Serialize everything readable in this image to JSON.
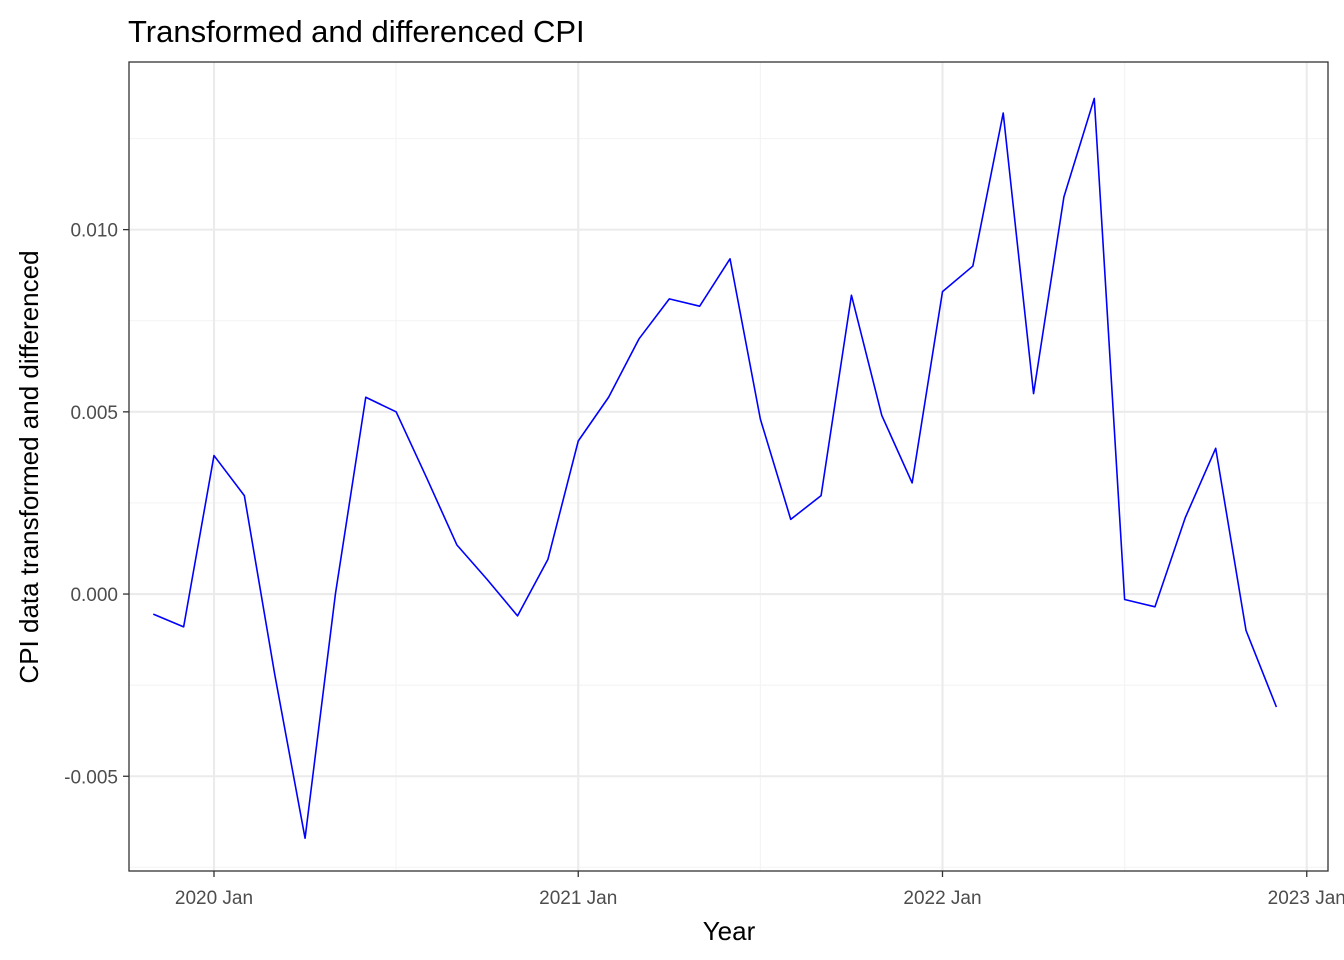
{
  "chart_data": {
    "type": "line",
    "title": "Transformed and differenced CPI",
    "xlabel": "Year",
    "ylabel": "CPI data transformed and differenced",
    "x": [
      "2019-11",
      "2019-12",
      "2020-01",
      "2020-02",
      "2020-03",
      "2020-04",
      "2020-05",
      "2020-06",
      "2020-07",
      "2020-08",
      "2020-09",
      "2020-10",
      "2020-11",
      "2020-12",
      "2021-01",
      "2021-02",
      "2021-03",
      "2021-04",
      "2021-05",
      "2021-06",
      "2021-07",
      "2021-08",
      "2021-09",
      "2021-10",
      "2021-11",
      "2021-12",
      "2022-01",
      "2022-02",
      "2022-03",
      "2022-04",
      "2022-05",
      "2022-06",
      "2022-07",
      "2022-08",
      "2022-09",
      "2022-10",
      "2022-11",
      "2022-12"
    ],
    "series": [
      {
        "color": "#0000ff",
        "values": [
          -0.00055,
          -0.0009,
          0.0038,
          0.0027,
          -0.0022,
          -0.0067,
          0.0,
          0.0054,
          0.005,
          0.0032,
          0.00135,
          0.0004,
          -0.0006,
          0.00095,
          0.0042,
          0.0054,
          0.007,
          0.0081,
          0.0079,
          0.0092,
          0.0048,
          0.00205,
          0.0027,
          0.0082,
          0.0049,
          0.00305,
          0.0083,
          0.009,
          0.0132,
          0.0055,
          0.0109,
          0.0136,
          -0.00015,
          -0.00035,
          0.0021,
          0.004,
          -0.001,
          -0.0031
        ]
      }
    ],
    "x_ticks": [
      "2020 Jan",
      "2021 Jan",
      "2022 Jan",
      "2023 Jan"
    ],
    "y_ticks": [
      "-0.005",
      "0.000",
      "0.005",
      "0.010"
    ],
    "ylim": [
      -0.0076,
      0.0146
    ],
    "grid": true,
    "legend": "none",
    "colors": {
      "line": "#0000ff",
      "grid_major": "#ebebeb",
      "grid_minor": "#f4f4f4",
      "panel_border": "#333333"
    }
  }
}
